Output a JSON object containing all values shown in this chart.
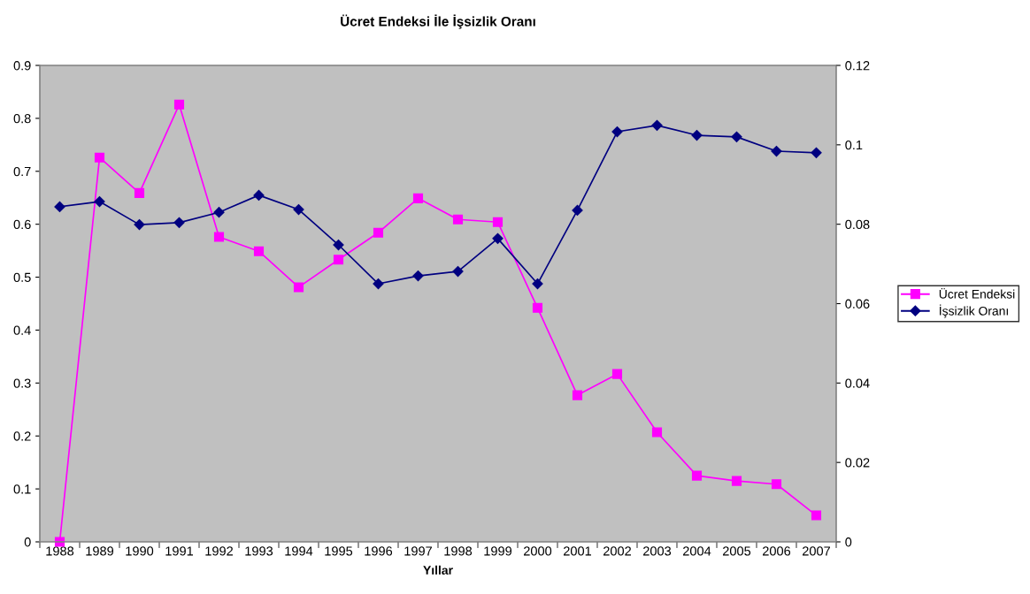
{
  "chart_data": {
    "type": "line",
    "title": "Ücret Endeksi İle İşsizlik Oranı",
    "xlabel": "Yıllar",
    "categories": [
      "1988",
      "1989",
      "1990",
      "1991",
      "1992",
      "1993",
      "1994",
      "1995",
      "1996",
      "1997",
      "1998",
      "1999",
      "2000",
      "2001",
      "2002",
      "2003",
      "2004",
      "2005",
      "2006",
      "2007"
    ],
    "series": [
      {
        "name": "Ücret Endeksi",
        "color": "#ff00ff",
        "marker": "square",
        "values": [
          0,
          0.726,
          0.659,
          0.826,
          0.576,
          0.549,
          0.481,
          0.533,
          0.584,
          0.649,
          0.609,
          0.604,
          0.442,
          0.277,
          0.317,
          0.207,
          0.125,
          0.115,
          0.109,
          0.05
        ]
      },
      {
        "name": "İşsizlik Oranı",
        "color": "#000080",
        "marker": "diamond",
        "axis": "y2",
        "values": [
          0.0844,
          0.0857,
          0.0799,
          0.0804,
          0.083,
          0.0873,
          0.0837,
          0.0748,
          0.065,
          0.067,
          0.0681,
          0.0764,
          0.065,
          0.0835,
          0.1033,
          0.1049,
          0.1024,
          0.102,
          0.0984,
          0.098
        ]
      }
    ],
    "ylim": [
      0,
      0.9
    ],
    "yticks": [
      0,
      0.1,
      0.2,
      0.3,
      0.4,
      0.5,
      0.6,
      0.7,
      0.8,
      0.9
    ],
    "y2lim": [
      0,
      0.12
    ],
    "y2ticks": [
      0,
      0.02,
      0.04,
      0.06,
      0.08,
      0.1,
      0.12
    ],
    "grid": false,
    "legend": "right"
  }
}
